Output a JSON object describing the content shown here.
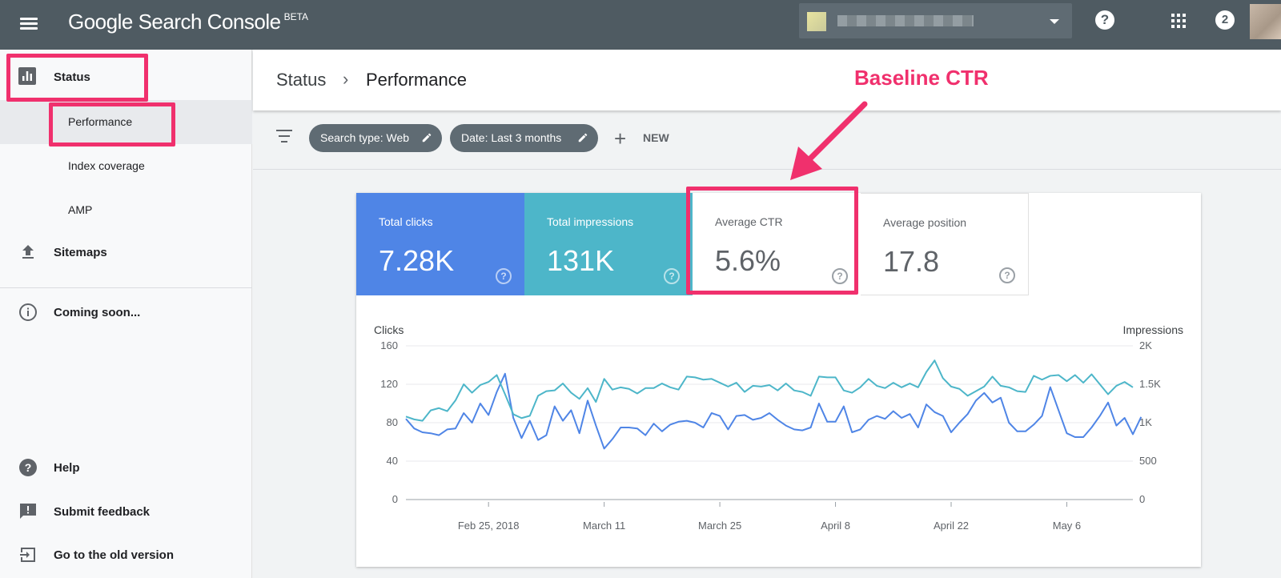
{
  "topbar": {
    "brand": "Google Search Console",
    "brand_tag": "BETA",
    "notifications": "2",
    "help": "?"
  },
  "sidebar": {
    "status": "Status",
    "performance": "Performance",
    "index_coverage": "Index coverage",
    "amp": "AMP",
    "sitemaps": "Sitemaps",
    "coming_soon": "Coming soon...",
    "help": "Help",
    "submit_feedback": "Submit feedback",
    "old_version": "Go to the old version"
  },
  "breadcrumb": {
    "parent": "Status",
    "separator": "›",
    "current": "Performance"
  },
  "filters": {
    "search_type": "Search type: Web",
    "date": "Date: Last 3 months",
    "new_label": "NEW"
  },
  "metrics": {
    "clicks_label": "Total clicks",
    "clicks_value": "7.28K",
    "impressions_label": "Total impressions",
    "impressions_value": "131K",
    "ctr_label": "Average CTR",
    "ctr_value": "5.6%",
    "position_label": "Average position",
    "position_value": "17.8"
  },
  "annotation": {
    "text": "Baseline CTR",
    "color": "#f0306d"
  },
  "colors": {
    "clicks": "#4f85e6",
    "impressions": "#4db6c9",
    "topbar": "#4f5b62"
  },
  "chart_data": {
    "type": "line",
    "ylabel_left": "Clicks",
    "ylabel_right": "Impressions",
    "y_left_ticks": [
      "0",
      "40",
      "80",
      "120",
      "160"
    ],
    "y_right_ticks": [
      "0",
      "500",
      "1K",
      "1.5K",
      "2K"
    ],
    "ylim_left": [
      0,
      160
    ],
    "ylim_right": [
      0,
      2000
    ],
    "x_ticks": [
      {
        "label": "Feb 25, 2018",
        "day": 10
      },
      {
        "label": "March 11",
        "day": 24
      },
      {
        "label": "March 25",
        "day": 38
      },
      {
        "label": "April 8",
        "day": 52
      },
      {
        "label": "April 22",
        "day": 66
      },
      {
        "label": "May 6",
        "day": 80
      }
    ],
    "x_range": [
      0,
      88
    ],
    "grid": true,
    "series": [
      {
        "name": "Clicks",
        "axis": "left",
        "color": "#4f85e6",
        "values": [
          84,
          74,
          70,
          69,
          67,
          73,
          74,
          90,
          80,
          100,
          88,
          112,
          131,
          85,
          64,
          82,
          62,
          67,
          97,
          82,
          93,
          69,
          103,
          77,
          53,
          63,
          75,
          75,
          74,
          67,
          79,
          71,
          78,
          81,
          82,
          80,
          75,
          90,
          87,
          73,
          87,
          88,
          83,
          85,
          90,
          83,
          77,
          73,
          72,
          75,
          100,
          81,
          81,
          97,
          70,
          73,
          83,
          87,
          84,
          92,
          85,
          89,
          75,
          99,
          91,
          87,
          70,
          80,
          89,
          103,
          111,
          101,
          106,
          80,
          71,
          71,
          78,
          87,
          117,
          93,
          69,
          65,
          65,
          75,
          87,
          101,
          77,
          85,
          68,
          86
        ]
      },
      {
        "name": "Impressions",
        "axis": "right",
        "color": "#4db6c9",
        "values": [
          1080,
          1043,
          1025,
          1160,
          1190,
          1150,
          1290,
          1500,
          1390,
          1490,
          1530,
          1620,
          1370,
          1110,
          1060,
          1090,
          1350,
          1410,
          1420,
          1510,
          1390,
          1310,
          1450,
          1270,
          1570,
          1430,
          1460,
          1440,
          1380,
          1450,
          1450,
          1510,
          1460,
          1430,
          1600,
          1590,
          1560,
          1570,
          1520,
          1470,
          1520,
          1400,
          1480,
          1470,
          1490,
          1420,
          1510,
          1420,
          1400,
          1350,
          1600,
          1590,
          1590,
          1420,
          1390,
          1460,
          1570,
          1480,
          1450,
          1520,
          1460,
          1510,
          1460,
          1660,
          1810,
          1580,
          1470,
          1440,
          1350,
          1410,
          1470,
          1600,
          1480,
          1460,
          1410,
          1400,
          1610,
          1560,
          1610,
          1620,
          1540,
          1620,
          1520,
          1630,
          1500,
          1370,
          1480,
          1530,
          1460
        ]
      }
    ]
  }
}
